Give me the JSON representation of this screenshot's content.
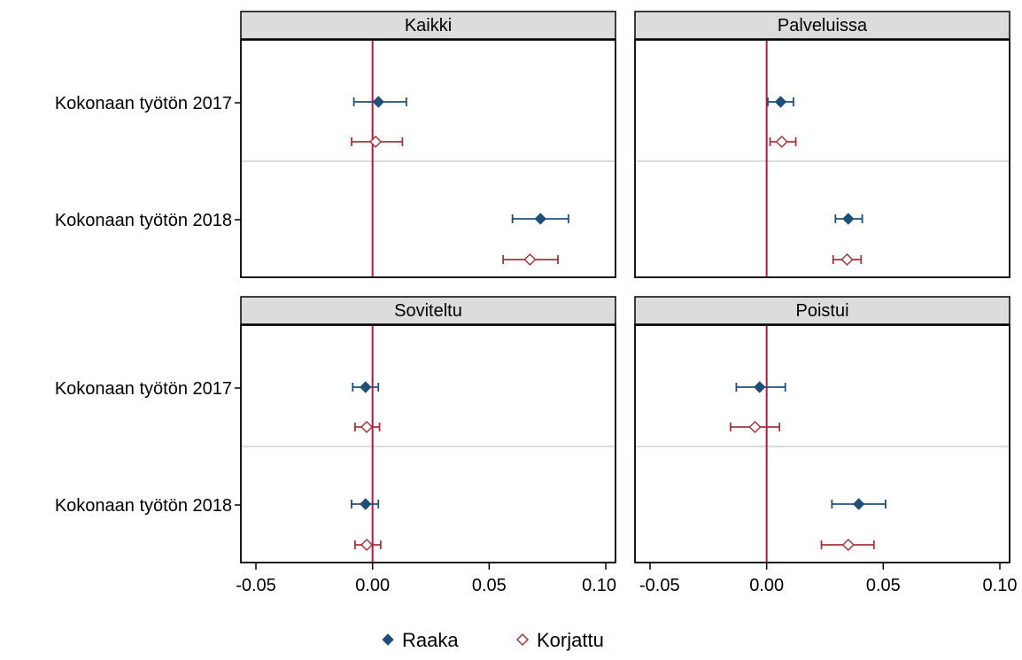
{
  "chart_data": {
    "type": "scatter",
    "subtype": "coefficient-plot with 95% confidence intervals, 2x2 facets",
    "categories": [
      "Kokonaan työtön 2017",
      "Kokonaan työtön 2018"
    ],
    "xlim": [
      -0.05,
      0.1
    ],
    "xticks": [
      {
        "value": -0.05,
        "label": "-0.05"
      },
      {
        "value": 0.0,
        "label": "0.00"
      },
      {
        "value": 0.05,
        "label": "0.05"
      },
      {
        "value": 0.1,
        "label": "0.10"
      }
    ],
    "reference_line": {
      "x": 0,
      "color": "#c0143c"
    },
    "legend": {
      "placement": "bottom"
    },
    "series_styles": {
      "Raaka": {
        "color": "#1f4e79",
        "marker": "filled-diamond"
      },
      "Korjattu": {
        "color": "#a0363e",
        "marker": "hollow-diamond"
      }
    },
    "panels": [
      {
        "title": "Kaikki",
        "series": [
          {
            "name": "Raaka",
            "points": [
              {
                "category": "Kokonaan työtön 2017",
                "estimate": 0.0025,
                "ci": [
                  -0.008,
                  0.0145
                ]
              },
              {
                "category": "Kokonaan työtön 2018",
                "estimate": 0.072,
                "ci": [
                  0.06,
                  0.084
                ]
              }
            ]
          },
          {
            "name": "Korjattu",
            "points": [
              {
                "category": "Kokonaan työtön 2017",
                "estimate": 0.0013,
                "ci": [
                  -0.009,
                  0.0128
                ]
              },
              {
                "category": "Kokonaan työtön 2018",
                "estimate": 0.0675,
                "ci": [
                  0.056,
                  0.0795
                ]
              }
            ]
          }
        ]
      },
      {
        "title": "Palveluissa",
        "series": [
          {
            "name": "Raaka",
            "points": [
              {
                "category": "Kokonaan työtön 2017",
                "estimate": 0.006,
                "ci": [
                  0.0005,
                  0.0115
                ]
              },
              {
                "category": "Kokonaan työtön 2018",
                "estimate": 0.035,
                "ci": [
                  0.0295,
                  0.041
                ]
              }
            ]
          },
          {
            "name": "Korjattu",
            "points": [
              {
                "category": "Kokonaan työtön 2017",
                "estimate": 0.0065,
                "ci": [
                  0.0015,
                  0.0125
                ]
              },
              {
                "category": "Kokonaan työtön 2018",
                "estimate": 0.0345,
                "ci": [
                  0.0285,
                  0.0405
                ]
              }
            ]
          }
        ]
      },
      {
        "title": "Soviteltu",
        "series": [
          {
            "name": "Raaka",
            "points": [
              {
                "category": "Kokonaan työtön 2017",
                "estimate": -0.003,
                "ci": [
                  -0.0085,
                  0.0025
                ]
              },
              {
                "category": "Kokonaan työtön 2018",
                "estimate": -0.003,
                "ci": [
                  -0.009,
                  0.0025
                ]
              }
            ]
          },
          {
            "name": "Korjattu",
            "points": [
              {
                "category": "Kokonaan työtön 2017",
                "estimate": -0.0025,
                "ci": [
                  -0.0075,
                  0.003
                ]
              },
              {
                "category": "Kokonaan työtön 2018",
                "estimate": -0.0025,
                "ci": [
                  -0.0075,
                  0.0035
                ]
              }
            ]
          }
        ]
      },
      {
        "title": "Poistui",
        "series": [
          {
            "name": "Raaka",
            "points": [
              {
                "category": "Kokonaan työtön 2017",
                "estimate": -0.003,
                "ci": [
                  -0.013,
                  0.008
                ]
              },
              {
                "category": "Kokonaan työtön 2018",
                "estimate": 0.0395,
                "ci": [
                  0.028,
                  0.051
                ]
              }
            ]
          },
          {
            "name": "Korjattu",
            "points": [
              {
                "category": "Kokonaan työtön 2017",
                "estimate": -0.005,
                "ci": [
                  -0.0155,
                  0.0055
                ]
              },
              {
                "category": "Kokonaan työtön 2018",
                "estimate": 0.035,
                "ci": [
                  0.0235,
                  0.046
                ]
              }
            ]
          }
        ]
      }
    ]
  }
}
